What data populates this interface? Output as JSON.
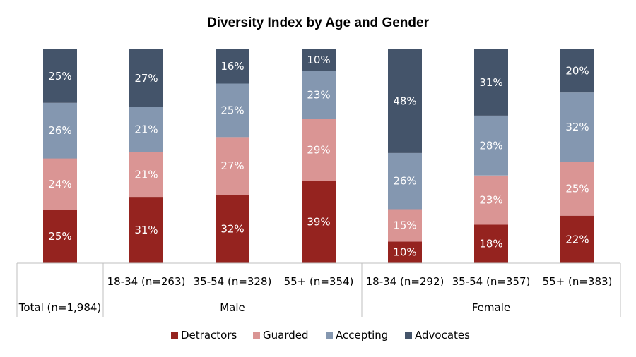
{
  "chart_data": {
    "type": "bar",
    "stacked": true,
    "title": "Diversity Index by Age and Gender",
    "categories": [
      "Total (n=1,984)",
      "18-34 (n=263)",
      "35-54 (n=328)",
      "55+ (n=354)",
      "18-34 (n=292)",
      "35-54 (n=357)",
      "55+ (n=383)"
    ],
    "groups": [
      {
        "label": "Male",
        "categories": [
          1,
          2,
          3
        ]
      },
      {
        "label": "Female",
        "categories": [
          4,
          5,
          6
        ]
      }
    ],
    "series": [
      {
        "name": "Detractors",
        "color": "#95231f",
        "values": [
          25,
          31,
          32,
          39,
          10,
          18,
          22
        ]
      },
      {
        "name": "Guarded",
        "color": "#da9594",
        "values": [
          24,
          21,
          27,
          29,
          15,
          23,
          25
        ]
      },
      {
        "name": "Accepting",
        "color": "#8497b0",
        "values": [
          26,
          21,
          25,
          23,
          26,
          28,
          32
        ]
      },
      {
        "name": "Advocates",
        "color": "#44546a",
        "values": [
          25,
          27,
          16,
          10,
          48,
          31,
          20
        ]
      }
    ],
    "value_suffix": "%",
    "ylim": [
      0,
      100
    ],
    "grid": false,
    "legend": "bottom"
  }
}
